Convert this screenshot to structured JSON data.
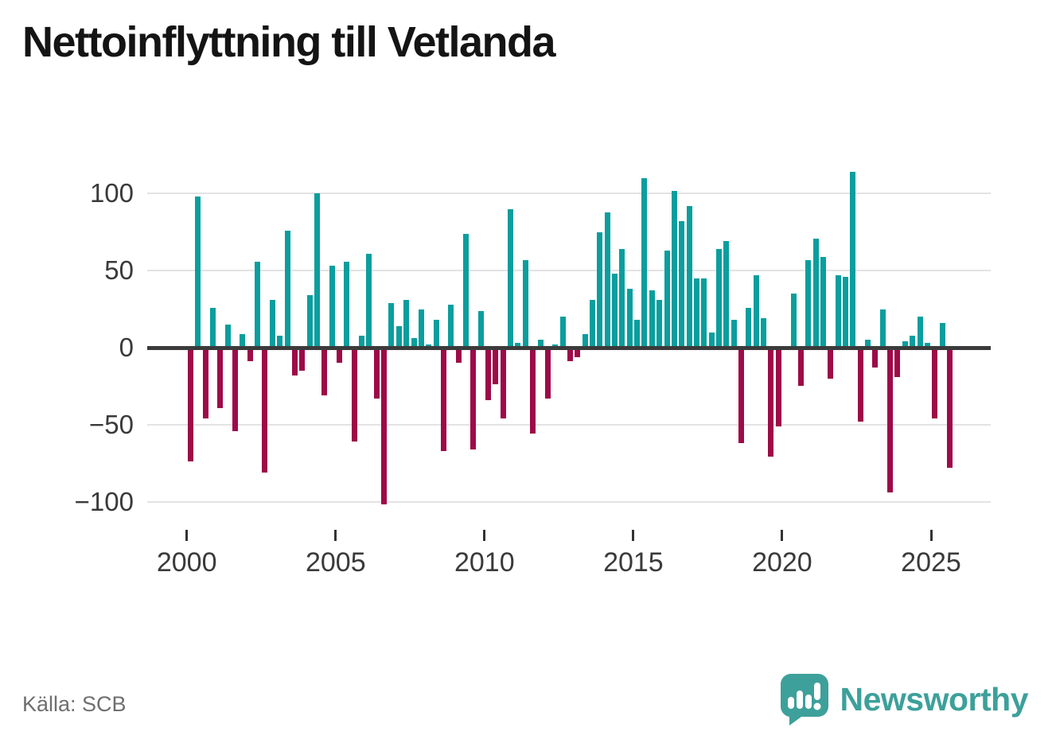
{
  "title": "Nettoinflyttning till Vetlanda",
  "source": "Källa: SCB",
  "branding": {
    "name": "Newsworthy",
    "logo_icon": "speech-bubble-bar-chart"
  },
  "colors": {
    "positive": "#0a9e9e",
    "negative": "#9e0a48",
    "brand": "#3da09a",
    "zero_line": "#3b3b3b",
    "grid": "#e3e3e3",
    "text": "#3a3a3a"
  },
  "chart_data": {
    "type": "bar",
    "title": "Nettoinflyttning till Vetlanda",
    "x_start": "2000-Q1",
    "x_freq": "quarterly",
    "values": [
      -74,
      98,
      -46,
      26,
      -39,
      15,
      -54,
      9,
      -9,
      56,
      -81,
      31,
      8,
      76,
      -18,
      -15,
      34,
      100,
      -31,
      53,
      -10,
      56,
      -61,
      8,
      61,
      -33,
      -102,
      29,
      14,
      31,
      6,
      25,
      2,
      18,
      -67,
      28,
      -10,
      74,
      -66,
      24,
      -34,
      -24,
      -46,
      90,
      3,
      57,
      -56,
      5,
      -33,
      2,
      20,
      -9,
      -6,
      9,
      31,
      75,
      88,
      48,
      64,
      38,
      18,
      110,
      37,
      31,
      63,
      102,
      82,
      92,
      45,
      45,
      10,
      64,
      69,
      18,
      -62,
      26,
      47,
      19,
      -71,
      -51,
      0,
      35,
      -25,
      57,
      71,
      59,
      -20,
      47,
      46,
      114,
      -48,
      5,
      -13,
      25,
      -94,
      -19,
      4,
      8,
      20,
      3,
      -46,
      16,
      -78
    ],
    "yticks": [
      {
        "v": 100,
        "label": "100"
      },
      {
        "v": 50,
        "label": "50"
      },
      {
        "v": 0,
        "label": "0"
      },
      {
        "v": -50,
        "label": "−50"
      },
      {
        "v": -100,
        "label": "−100"
      }
    ],
    "xticks": [
      {
        "year": 2000,
        "label": "2000"
      },
      {
        "year": 2005,
        "label": "2005"
      },
      {
        "year": 2010,
        "label": "2010"
      },
      {
        "year": 2015,
        "label": "2015"
      },
      {
        "year": 2020,
        "label": "2020"
      },
      {
        "year": 2025,
        "label": "2025"
      }
    ],
    "ylim": [
      -115,
      120
    ],
    "grid": true,
    "legend": false
  }
}
